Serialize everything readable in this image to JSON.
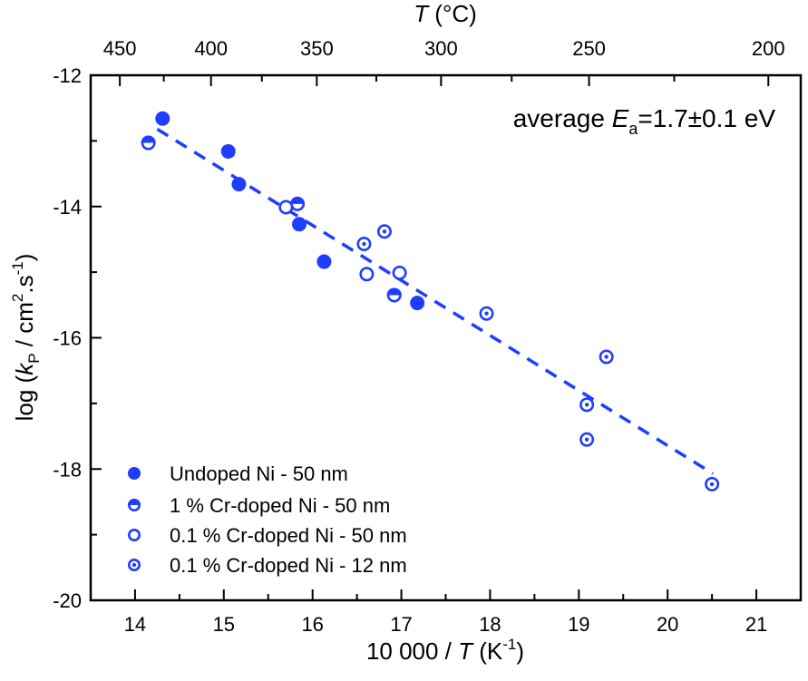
{
  "chart_data": {
    "type": "scatter",
    "xlim": [
      13.5,
      21.5
    ],
    "ylim": [
      -20,
      -12
    ],
    "grid": false,
    "legend_placement": "bottom-left",
    "x_ticks": [
      "14",
      "15",
      "16",
      "17",
      "18",
      "19",
      "20",
      "21"
    ],
    "y_ticks": [
      "-12",
      "-14",
      "-16",
      "-18",
      "-20"
    ],
    "top_axis": {
      "label_italic": "T",
      "label_rest": " (°C)",
      "ticks": [
        "450",
        "400",
        "350",
        "300",
        "250",
        "200"
      ],
      "tick_values_celsius": [
        450,
        400,
        350,
        300,
        250,
        200
      ],
      "conversion": "10000/(T+273.15)"
    },
    "xlabel": {
      "pre": "10 000 / ",
      "italic": "T",
      "mid": " (K",
      "sup": "-1",
      "post": ")"
    },
    "ylabel": {
      "pre": "log (",
      "italic": "k",
      "sub": "P",
      "mid": " / cm",
      "sup1": "2",
      "mid2": ".s",
      "sup2": "-1",
      "post": ")"
    },
    "annotation": {
      "pre": "average ",
      "italic": "E",
      "sub": "a",
      "post": "=1.7±0.1 eV"
    },
    "color": "#1f3dff",
    "series": [
      {
        "name": "Undoped Ni - 50 nm",
        "marker": "filled-circle",
        "points": [
          [
            14.31,
            -12.66
          ],
          [
            15.05,
            -13.16
          ],
          [
            15.17,
            -13.66
          ],
          [
            15.85,
            -14.27
          ],
          [
            16.13,
            -14.84
          ],
          [
            17.18,
            -15.47
          ]
        ]
      },
      {
        "name": "1 % Cr-doped Ni - 50 nm",
        "marker": "half-filled-circle",
        "points": [
          [
            14.15,
            -13.03
          ],
          [
            15.83,
            -13.96
          ],
          [
            16.92,
            -15.35
          ]
        ]
      },
      {
        "name": "0.1 % Cr-doped Ni - 50 nm",
        "marker": "open-circle",
        "points": [
          [
            15.7,
            -14.01
          ],
          [
            16.61,
            -15.03
          ],
          [
            16.98,
            -15.01
          ]
        ]
      },
      {
        "name": "0.1 % Cr-doped Ni - 12 nm",
        "marker": "dotted-circle",
        "points": [
          [
            16.58,
            -14.57
          ],
          [
            16.81,
            -14.38
          ],
          [
            17.96,
            -15.63
          ],
          [
            19.31,
            -16.29
          ],
          [
            19.09,
            -17.02
          ],
          [
            19.09,
            -17.55
          ],
          [
            20.5,
            -18.23
          ]
        ]
      }
    ],
    "fit_line": {
      "style": "dashed",
      "from": [
        14.25,
        -12.82
      ],
      "to": [
        20.51,
        -18.07
      ]
    }
  }
}
